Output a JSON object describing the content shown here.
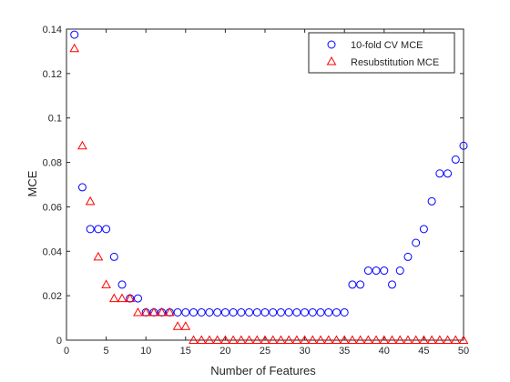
{
  "chart_data": {
    "type": "scatter",
    "xlabel": "Number of Features",
    "ylabel": "MCE",
    "xlim": [
      0,
      50
    ],
    "ylim": [
      0,
      0.14
    ],
    "xticks": [
      0,
      5,
      10,
      15,
      20,
      25,
      30,
      35,
      40,
      45,
      50
    ],
    "yticks": [
      0,
      0.02,
      0.04,
      0.06,
      0.08,
      0.1,
      0.12,
      0.14
    ],
    "grid": false,
    "legend_position": "top-right",
    "series": [
      {
        "name": "10-fold CV MCE",
        "marker": "circle",
        "color": "#0000ff",
        "x": [
          1,
          2,
          3,
          4,
          5,
          6,
          7,
          8,
          9,
          10,
          11,
          12,
          13,
          14,
          15,
          16,
          17,
          18,
          19,
          20,
          21,
          22,
          23,
          24,
          25,
          26,
          27,
          28,
          29,
          30,
          31,
          32,
          33,
          34,
          35,
          36,
          37,
          38,
          39,
          40,
          41,
          42,
          43,
          44,
          45,
          46,
          47,
          48,
          49,
          50
        ],
        "y": [
          0.1375,
          0.0688,
          0.05,
          0.05,
          0.05,
          0.0375,
          0.025,
          0.0188,
          0.0188,
          0.0125,
          0.0125,
          0.0125,
          0.0125,
          0.0125,
          0.0125,
          0.0125,
          0.0125,
          0.0125,
          0.0125,
          0.0125,
          0.0125,
          0.0125,
          0.0125,
          0.0125,
          0.0125,
          0.0125,
          0.0125,
          0.0125,
          0.0125,
          0.0125,
          0.0125,
          0.0125,
          0.0125,
          0.0125,
          0.0125,
          0.025,
          0.025,
          0.0313,
          0.0313,
          0.0313,
          0.025,
          0.0313,
          0.0375,
          0.0438,
          0.05,
          0.0625,
          0.075,
          0.075,
          0.0813,
          0.0875
        ]
      },
      {
        "name": "Resubstitution MCE",
        "marker": "triangle",
        "color": "#ff0000",
        "x": [
          1,
          2,
          3,
          4,
          5,
          6,
          7,
          8,
          9,
          10,
          11,
          12,
          13,
          14,
          15,
          16,
          17,
          18,
          19,
          20,
          21,
          22,
          23,
          24,
          25,
          26,
          27,
          28,
          29,
          30,
          31,
          32,
          33,
          34,
          35,
          36,
          37,
          38,
          39,
          40,
          41,
          42,
          43,
          44,
          45,
          46,
          47,
          48,
          49,
          50
        ],
        "y": [
          0.1313,
          0.0875,
          0.0625,
          0.0375,
          0.025,
          0.0188,
          0.0188,
          0.0188,
          0.0125,
          0.0125,
          0.0125,
          0.0125,
          0.0125,
          0.00625,
          0.00625,
          0,
          0,
          0,
          0,
          0,
          0,
          0,
          0,
          0,
          0,
          0,
          0,
          0,
          0,
          0,
          0,
          0,
          0,
          0,
          0,
          0,
          0,
          0,
          0,
          0,
          0,
          0,
          0,
          0,
          0,
          0,
          0,
          0,
          0,
          0
        ]
      }
    ]
  }
}
